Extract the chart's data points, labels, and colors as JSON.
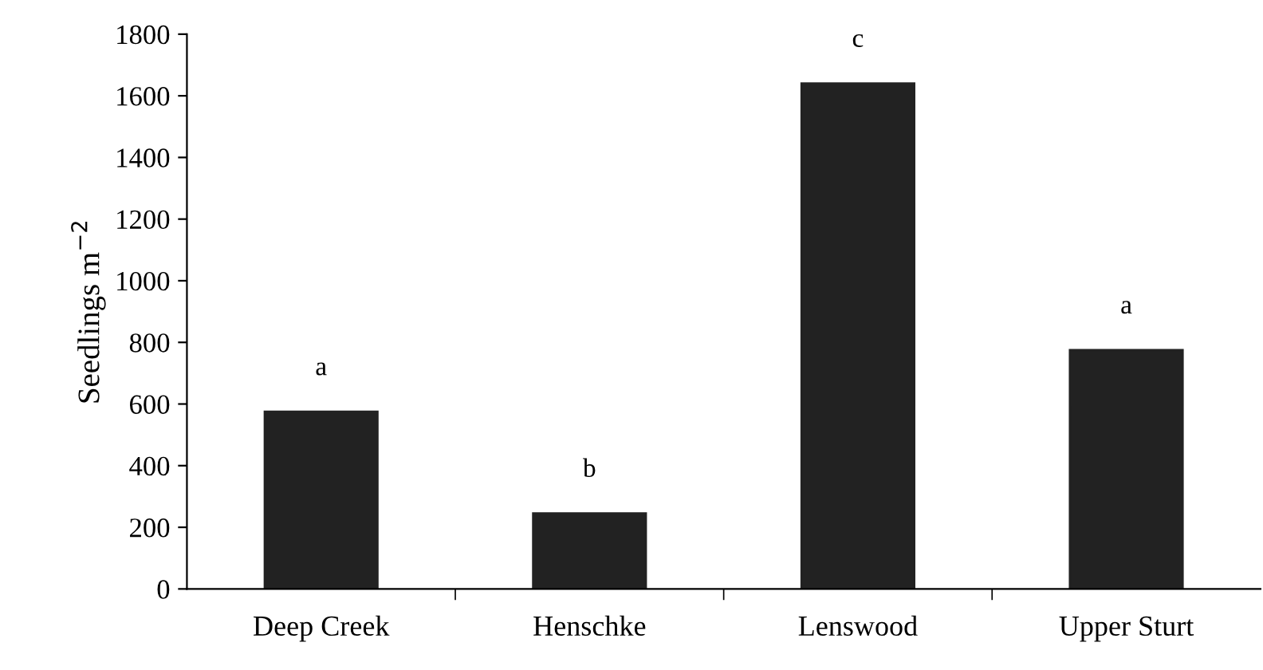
{
  "chart_data": {
    "type": "bar",
    "ylabel": "Seedlings m$^{−2}$",
    "categories": [
      "Deep Creek",
      "Henschke",
      "Lenswood",
      "Upper Sturt"
    ],
    "values": [
      575,
      245,
      1640,
      775
    ],
    "color": "#222222",
    "ylim": [
      0,
      1800
    ],
    "yticks": [
      0,
      200,
      400,
      600,
      800,
      1000,
      1200,
      1400,
      1600,
      1800
    ],
    "grid": false,
    "legend": false,
    "annotations": [
      "a",
      "b",
      "c",
      "a"
    ]
  }
}
